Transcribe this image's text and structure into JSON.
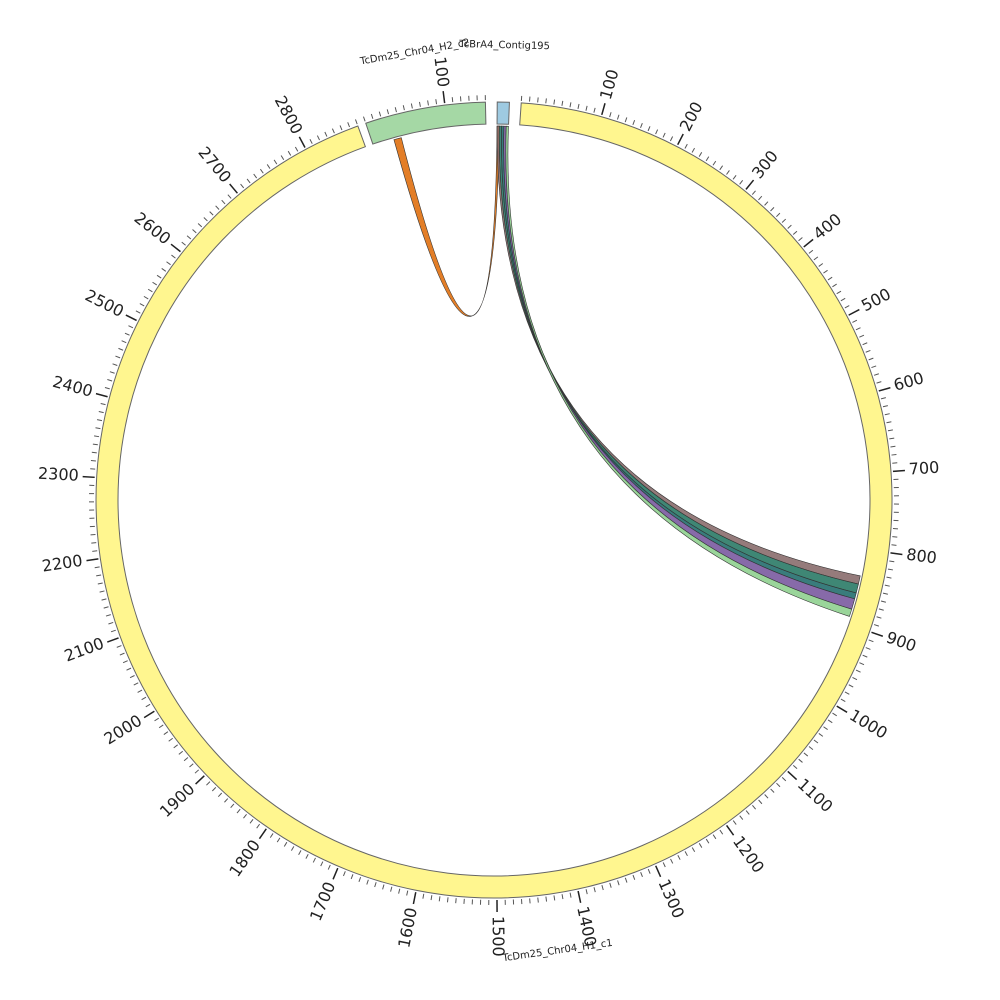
{
  "chart_data": {
    "type": "chord",
    "segments": [
      {
        "name": "TcDm25_Chr04_H2_c2",
        "length": 150,
        "color": "#a5d8a5",
        "ticks": [
          100
        ]
      },
      {
        "name": "TcBrA4_Contig195",
        "length": 15,
        "color": "#9ecae1"
      },
      {
        "name": "TcDm25_Chr04_H1_c1",
        "length": 2870,
        "color": "#fff68f",
        "ticks": [
          100,
          200,
          300,
          400,
          500,
          600,
          700,
          800,
          900,
          1000,
          1100,
          1200,
          1300,
          1400,
          1500,
          1600,
          1700,
          1800,
          1900,
          2000,
          2100,
          2200,
          2300,
          2400,
          2500,
          2600,
          2700,
          2800
        ]
      }
    ],
    "links": [
      {
        "from": [
          0,
          28,
          38
        ],
        "to": [
          1,
          0,
          3
        ],
        "color": "#e0700f"
      },
      {
        "from": [
          1,
          0,
          3
        ],
        "to": [
          2,
          835,
          846
        ],
        "color": "#8a6d6d"
      },
      {
        "from": [
          1,
          3,
          6
        ],
        "to": [
          2,
          846,
          858
        ],
        "color": "#2a7a66"
      },
      {
        "from": [
          1,
          6,
          9
        ],
        "to": [
          2,
          858,
          866
        ],
        "color": "#246e6e"
      },
      {
        "from": [
          1,
          9,
          12
        ],
        "to": [
          2,
          866,
          880
        ],
        "color": "#7a5aa0"
      },
      {
        "from": [
          1,
          12,
          15
        ],
        "to": [
          2,
          880,
          890
        ],
        "color": "#8fd08f"
      }
    ]
  }
}
